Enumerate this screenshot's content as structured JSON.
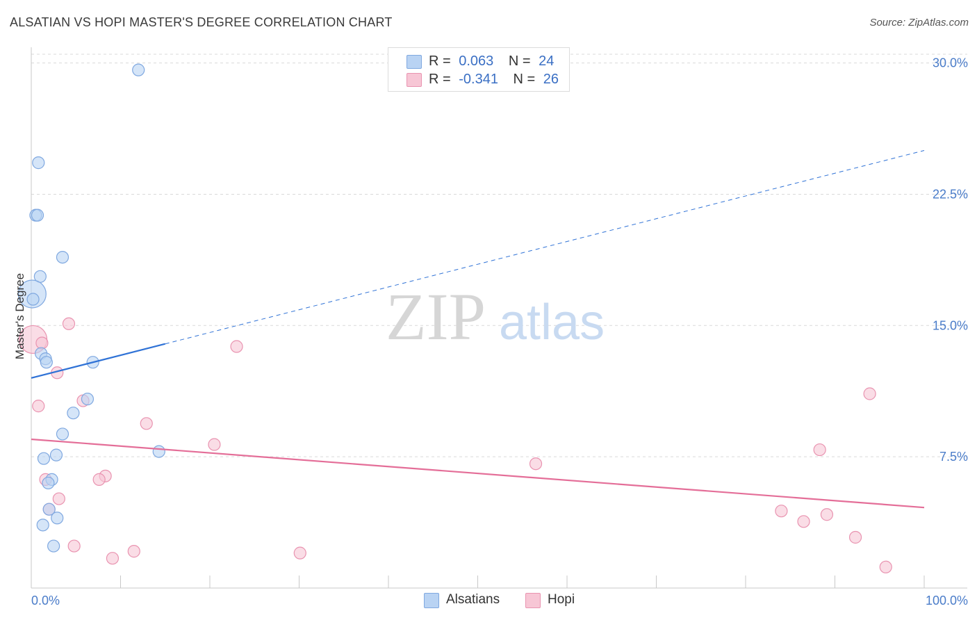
{
  "header": {
    "title": "ALSATIAN VS HOPI MASTER'S DEGREE CORRELATION CHART",
    "source": "Source: ZipAtlas.com"
  },
  "watermark": {
    "zip": "ZIP",
    "atlas": "atlas"
  },
  "legend": {
    "rows": [
      {
        "r_label": "R =",
        "r_value": "0.063",
        "n_label": "N =",
        "n_value": "24"
      },
      {
        "r_label": "R =",
        "r_value": "-0.341",
        "n_label": "N =",
        "n_value": "26"
      }
    ]
  },
  "bottom_legend": {
    "alsatians": "Alsatians",
    "hopi": "Hopi"
  },
  "colors": {
    "blue_fill": "#b9d3f3",
    "blue_stroke": "#7fa8e0",
    "blue_line": "#2f72d6",
    "pink_fill": "#f7c6d5",
    "pink_stroke": "#e993b0",
    "pink_line": "#e46e98",
    "grid": "#d9d9d9",
    "tick_text": "#4a7cc9"
  },
  "chart_data": {
    "type": "scatter",
    "title": "ALSATIAN VS HOPI MASTER'S DEGREE CORRELATION CHART",
    "xlabel": "",
    "ylabel": "Master's Degree",
    "xlim": [
      0,
      100
    ],
    "ylim": [
      0,
      30.5
    ],
    "x_tick_labels": [
      "0.0%",
      "100.0%"
    ],
    "y_ticks": [
      7.5,
      15.0,
      22.5,
      30.0
    ],
    "y_tick_labels": [
      "7.5%",
      "15.0%",
      "22.5%",
      "30.0%"
    ],
    "grid": true,
    "series": [
      {
        "name": "Alsatians",
        "r": 0.063,
        "n": 24,
        "points": [
          {
            "x": 12.0,
            "y": 29.6,
            "s": 1
          },
          {
            "x": 0.8,
            "y": 24.3,
            "s": 1
          },
          {
            "x": 0.5,
            "y": 21.3,
            "s": 1
          },
          {
            "x": 0.7,
            "y": 21.3,
            "s": 1
          },
          {
            "x": 3.5,
            "y": 18.9,
            "s": 1
          },
          {
            "x": 1.0,
            "y": 17.8,
            "s": 1
          },
          {
            "x": 0.1,
            "y": 16.8,
            "s": 2
          },
          {
            "x": 0.2,
            "y": 16.5,
            "s": 1
          },
          {
            "x": 1.1,
            "y": 13.4,
            "s": 1
          },
          {
            "x": 1.6,
            "y": 13.1,
            "s": 1
          },
          {
            "x": 1.7,
            "y": 12.9,
            "s": 1
          },
          {
            "x": 6.9,
            "y": 12.9,
            "s": 1
          },
          {
            "x": 6.3,
            "y": 10.8,
            "s": 1
          },
          {
            "x": 4.7,
            "y": 10.0,
            "s": 1
          },
          {
            "x": 3.5,
            "y": 8.8,
            "s": 1
          },
          {
            "x": 14.3,
            "y": 7.8,
            "s": 1
          },
          {
            "x": 2.8,
            "y": 7.6,
            "s": 1
          },
          {
            "x": 1.4,
            "y": 7.4,
            "s": 1
          },
          {
            "x": 2.3,
            "y": 6.2,
            "s": 1
          },
          {
            "x": 1.9,
            "y": 6.0,
            "s": 1
          },
          {
            "x": 2.0,
            "y": 4.5,
            "s": 1
          },
          {
            "x": 2.9,
            "y": 4.0,
            "s": 1
          },
          {
            "x": 1.3,
            "y": 3.6,
            "s": 1
          },
          {
            "x": 2.5,
            "y": 2.4,
            "s": 1
          }
        ],
        "trend": {
          "x0": 0,
          "y0": 12.0,
          "x_solid_end": 15,
          "x1": 100,
          "y1": 25.0
        }
      },
      {
        "name": "Hopi",
        "r": -0.341,
        "n": 26,
        "points": [
          {
            "x": 0.2,
            "y": 14.2,
            "s": 2
          },
          {
            "x": 1.2,
            "y": 14.0,
            "s": 1
          },
          {
            "x": 4.2,
            "y": 15.1,
            "s": 1
          },
          {
            "x": 23.0,
            "y": 13.8,
            "s": 1
          },
          {
            "x": 2.9,
            "y": 12.3,
            "s": 1
          },
          {
            "x": 0.8,
            "y": 10.4,
            "s": 1
          },
          {
            "x": 5.8,
            "y": 10.7,
            "s": 1
          },
          {
            "x": 12.9,
            "y": 9.4,
            "s": 1
          },
          {
            "x": 20.5,
            "y": 8.2,
            "s": 1
          },
          {
            "x": 56.5,
            "y": 7.1,
            "s": 1
          },
          {
            "x": 88.3,
            "y": 7.9,
            "s": 1
          },
          {
            "x": 93.9,
            "y": 11.1,
            "s": 1
          },
          {
            "x": 8.3,
            "y": 6.4,
            "s": 1
          },
          {
            "x": 7.6,
            "y": 6.2,
            "s": 1
          },
          {
            "x": 1.6,
            "y": 6.2,
            "s": 1
          },
          {
            "x": 3.1,
            "y": 5.1,
            "s": 1
          },
          {
            "x": 2.0,
            "y": 4.5,
            "s": 1
          },
          {
            "x": 84.0,
            "y": 4.4,
            "s": 1
          },
          {
            "x": 89.1,
            "y": 4.2,
            "s": 1
          },
          {
            "x": 86.5,
            "y": 3.8,
            "s": 1
          },
          {
            "x": 92.3,
            "y": 2.9,
            "s": 1
          },
          {
            "x": 4.8,
            "y": 2.4,
            "s": 1
          },
          {
            "x": 11.5,
            "y": 2.1,
            "s": 1
          },
          {
            "x": 30.1,
            "y": 2.0,
            "s": 1
          },
          {
            "x": 9.1,
            "y": 1.7,
            "s": 1
          },
          {
            "x": 95.7,
            "y": 1.2,
            "s": 1
          }
        ],
        "trend": {
          "x0": 0,
          "y0": 8.5,
          "x1": 100,
          "y1": 4.6
        }
      }
    ]
  }
}
